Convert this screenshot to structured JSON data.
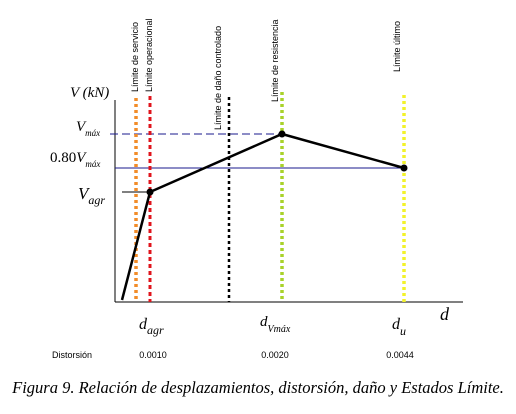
{
  "axes": {
    "y_label": "V (kN)",
    "x_label": "d"
  },
  "limit_lines": [
    {
      "label": "Límite de servicio",
      "color": "#f28c28"
    },
    {
      "label": "Límite operacional",
      "color": "#e0141c"
    },
    {
      "label": "Límite de daño controlado",
      "color": "#000000"
    },
    {
      "label": "Límite de resistencia",
      "color": "#a8d22a"
    },
    {
      "label": "Límite último",
      "color": "#f2f22a"
    }
  ],
  "y_markers": {
    "vmax": {
      "base": "V",
      "sub": "máx"
    },
    "v080": {
      "prefix": "0.80",
      "base": "V",
      "sub": "máx"
    },
    "vagr": {
      "base": "V",
      "sub": "agr"
    }
  },
  "x_markers": {
    "dagr": {
      "base": "d",
      "sub": "agr"
    },
    "dvmax": {
      "base": "d",
      "sub": "Vmáx"
    },
    "du": {
      "base": "d",
      "sub": "u"
    }
  },
  "distortion": {
    "label": "Distorsión",
    "values": [
      "0.0010",
      "0.0020",
      "0.0044"
    ]
  },
  "curve": {
    "points": [
      {
        "name": "origin",
        "d": 0,
        "V": 0
      },
      {
        "name": "agr",
        "d": "d_agr",
        "V": "V_agr"
      },
      {
        "name": "max",
        "d": "d_Vmáx",
        "V": "V_máx"
      },
      {
        "name": "ultimate",
        "d": "d_u",
        "V": "0.80V_máx"
      }
    ],
    "color": "#000000"
  },
  "guide_colors": {
    "vmax": "#1a1a8c",
    "v080": "#1a1a8c"
  },
  "caption": "Figura 9. Relación de desplazamientos, distorsión, daño y Estados Límite."
}
